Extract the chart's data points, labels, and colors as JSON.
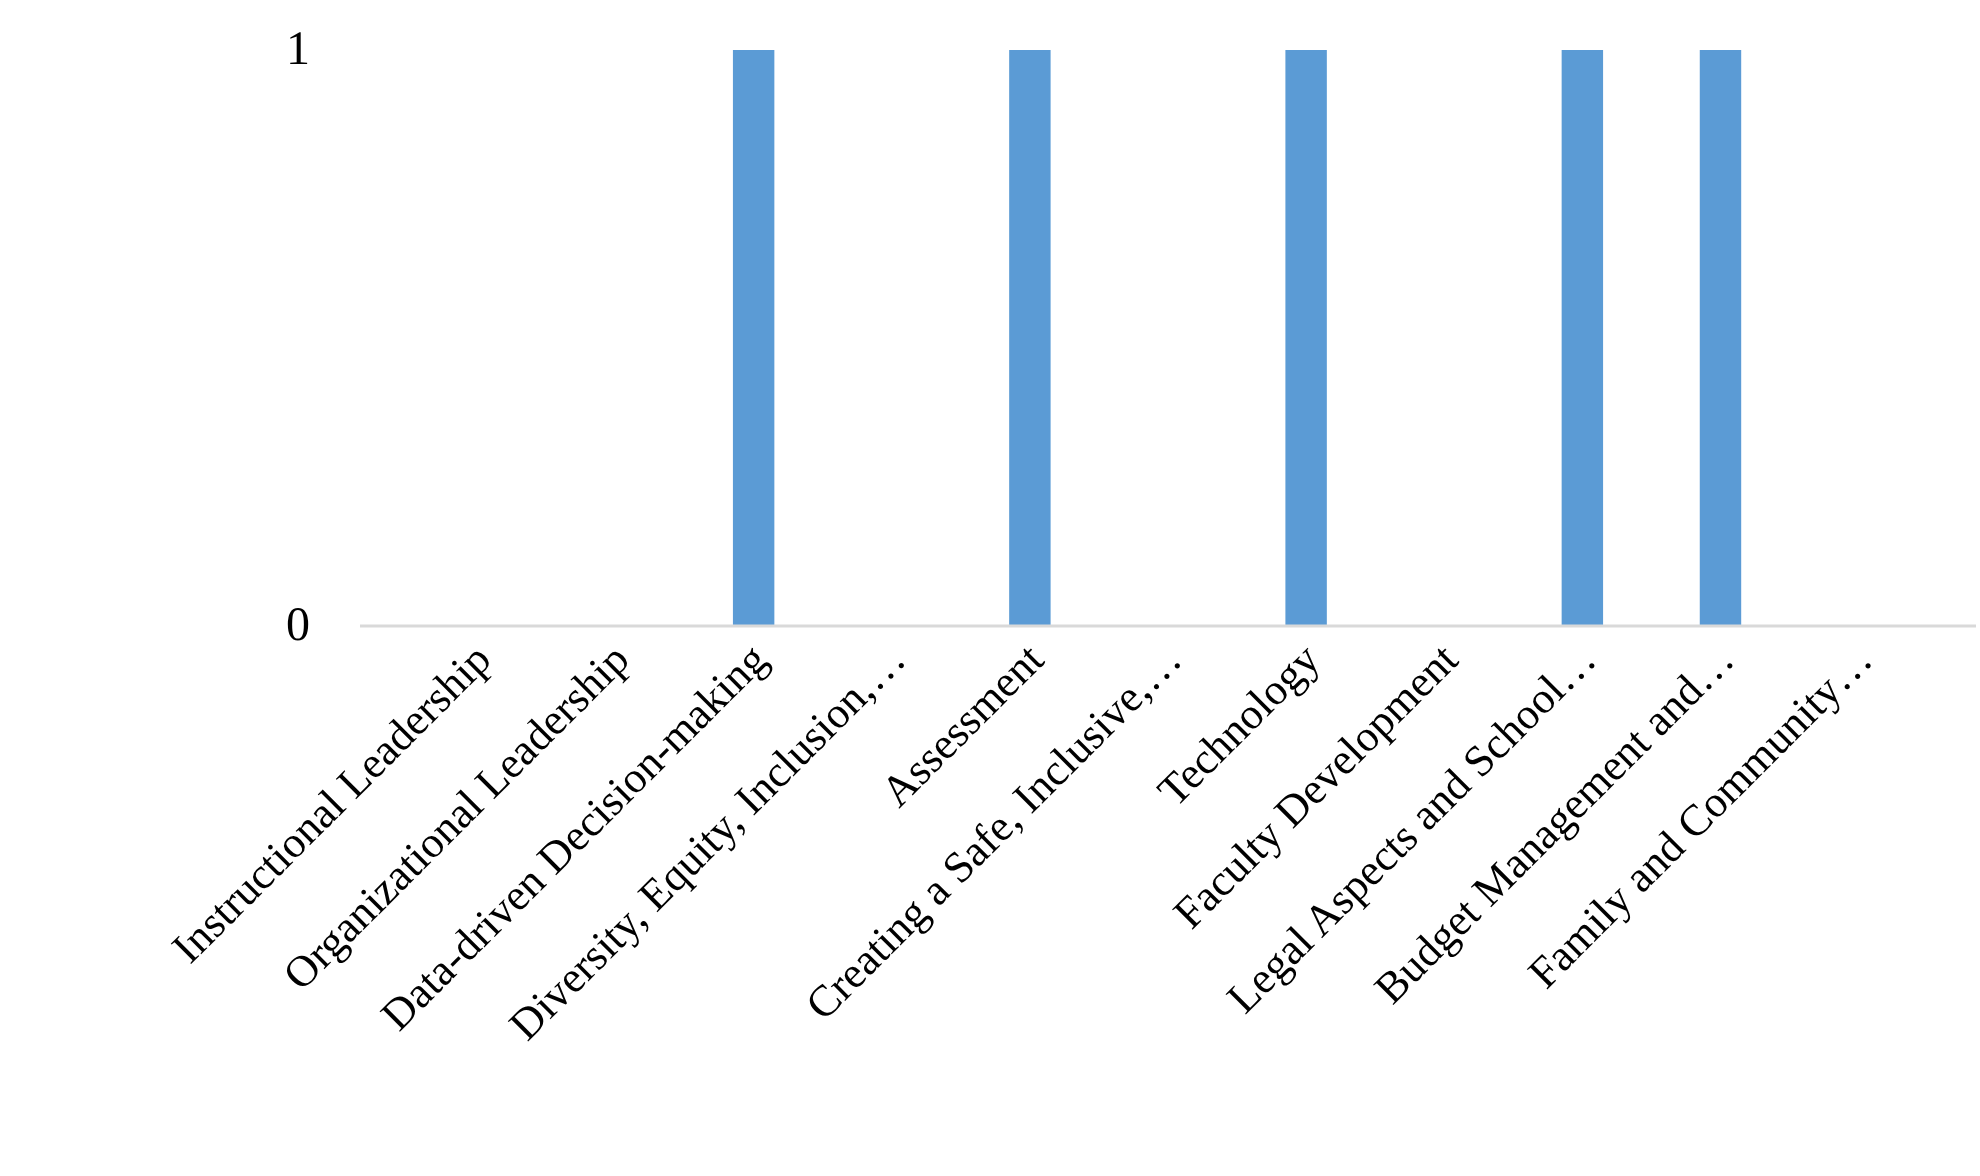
{
  "chart_data": {
    "type": "bar",
    "categories": [
      "Instructional Leadership",
      "Organizational Leadership",
      "Data-driven Decision-making",
      "Diversity, Equity, Inclusion,…",
      "Assessment",
      "Creating a Safe, Inclusive,…",
      "Technology",
      "Faculty Development",
      "Legal Aspects and School…",
      "Budget Management and…",
      "Family and Community…"
    ],
    "values": [
      0,
      0,
      1,
      0,
      1,
      0,
      1,
      0,
      1,
      1,
      0
    ],
    "color": "#5b9bd5",
    "ylim": [
      0,
      1
    ],
    "yticks": [
      0,
      1
    ],
    "grid": false
  }
}
